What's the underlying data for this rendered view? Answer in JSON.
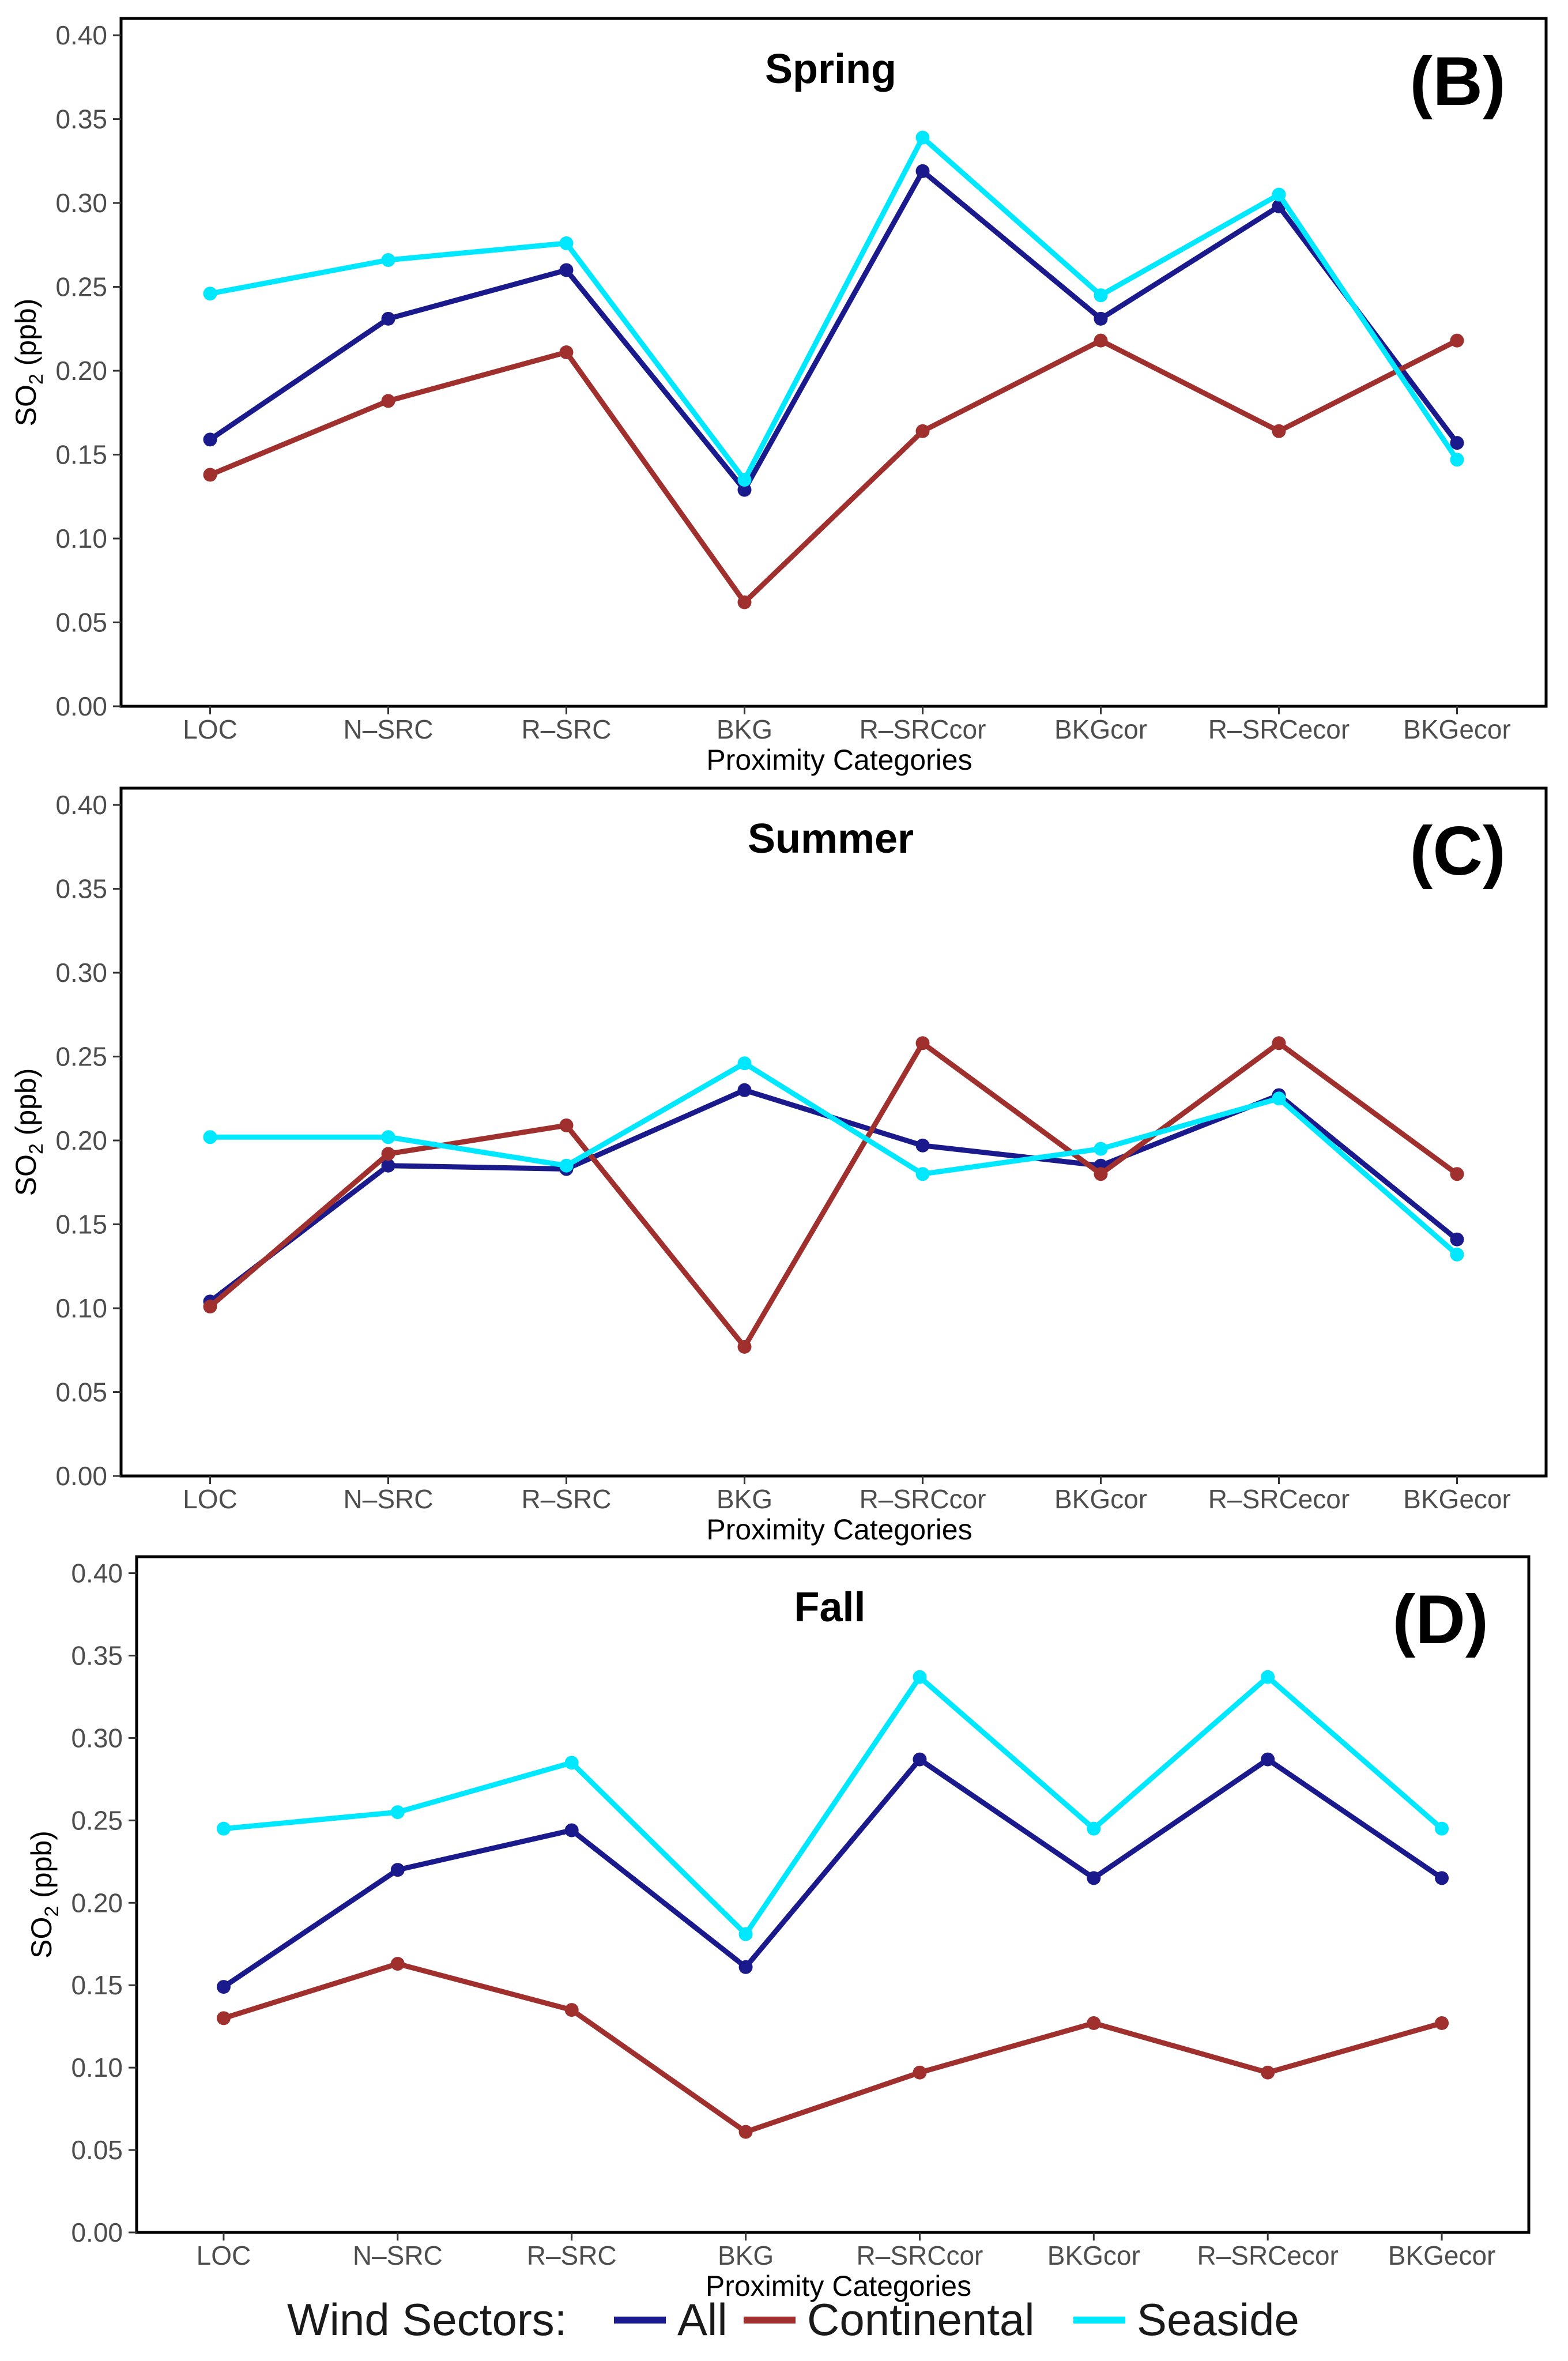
{
  "chart_data": [
    {
      "type": "line",
      "panel": "(B)",
      "title": "Spring",
      "xlabel": "Proximity Categories",
      "ylabel": "SO2 (ppb)",
      "ylabel_main": "SO",
      "ylabel_sub": "2",
      "ylabel_unit": " (ppb)",
      "ylim": [
        0,
        0.41
      ],
      "yticks": [
        "0.00",
        "0.05",
        "0.10",
        "0.15",
        "0.20",
        "0.25",
        "0.30",
        "0.35",
        "0.40"
      ],
      "categories": [
        "LOC",
        "N–SRC",
        "R–SRC",
        "BKG",
        "R–SRCcor",
        "BKGcor",
        "R–SRCecor",
        "BKGecor"
      ],
      "series": [
        {
          "name": "All",
          "color": "#1a1a8c",
          "values": [
            0.159,
            0.231,
            0.26,
            0.129,
            0.319,
            0.231,
            0.298,
            0.157
          ]
        },
        {
          "name": "Continental",
          "color": "#a0302e",
          "values": [
            0.138,
            0.182,
            0.211,
            0.062,
            0.164,
            0.218,
            0.164,
            0.218
          ]
        },
        {
          "name": "Seaside",
          "color": "#00e8ff",
          "values": [
            0.246,
            0.266,
            0.276,
            0.135,
            0.339,
            0.245,
            0.305,
            0.147
          ]
        }
      ]
    },
    {
      "type": "line",
      "panel": "(C)",
      "title": "Summer",
      "xlabel": "Proximity Categories",
      "ylabel": "SO2 (ppb)",
      "ylabel_main": "SO",
      "ylabel_sub": "2",
      "ylabel_unit": " (ppb)",
      "ylim": [
        0,
        0.41
      ],
      "yticks": [
        "0.00",
        "0.05",
        "0.10",
        "0.15",
        "0.20",
        "0.25",
        "0.30",
        "0.35",
        "0.40"
      ],
      "categories": [
        "LOC",
        "N–SRC",
        "R–SRC",
        "BKG",
        "R–SRCcor",
        "BKGcor",
        "R–SRCecor",
        "BKGecor"
      ],
      "series": [
        {
          "name": "All",
          "color": "#1a1a8c",
          "values": [
            0.104,
            0.185,
            0.183,
            0.23,
            0.197,
            0.185,
            0.227,
            0.141
          ]
        },
        {
          "name": "Continental",
          "color": "#a0302e",
          "values": [
            0.101,
            0.192,
            0.209,
            0.077,
            0.258,
            0.18,
            0.258,
            0.18
          ]
        },
        {
          "name": "Seaside",
          "color": "#00e8ff",
          "values": [
            0.202,
            0.202,
            0.185,
            0.246,
            0.18,
            0.195,
            0.225,
            0.132
          ]
        }
      ]
    },
    {
      "type": "line",
      "panel": "(D)",
      "title": "Fall",
      "xlabel": "Proximity Categories",
      "ylabel": "SO2 (ppb)",
      "ylabel_main": "SO",
      "ylabel_sub": "2",
      "ylabel_unit": " (ppb)",
      "ylim": [
        0,
        0.41
      ],
      "yticks": [
        "0.00",
        "0.05",
        "0.10",
        "0.15",
        "0.20",
        "0.25",
        "0.30",
        "0.35",
        "0.40"
      ],
      "categories": [
        "LOC",
        "N–SRC",
        "R–SRC",
        "BKG",
        "R–SRCcor",
        "BKGcor",
        "R–SRCecor",
        "BKGecor"
      ],
      "series": [
        {
          "name": "All",
          "color": "#1a1a8c",
          "values": [
            0.149,
            0.22,
            0.244,
            0.161,
            0.287,
            0.215,
            0.287,
            0.215
          ]
        },
        {
          "name": "Continental",
          "color": "#a0302e",
          "values": [
            0.13,
            0.163,
            0.135,
            0.061,
            0.097,
            0.127,
            0.097,
            0.127
          ]
        },
        {
          "name": "Seaside",
          "color": "#00e8ff",
          "values": [
            0.245,
            0.255,
            0.285,
            0.181,
            0.337,
            0.245,
            0.337,
            0.245
          ]
        }
      ]
    }
  ],
  "legend": {
    "title": "Wind Sectors:",
    "items": [
      {
        "label": "All",
        "color": "#1a1a8c"
      },
      {
        "label": "Continental",
        "color": "#a0302e"
      },
      {
        "label": "Seaside",
        "color": "#00e8ff"
      }
    ]
  }
}
